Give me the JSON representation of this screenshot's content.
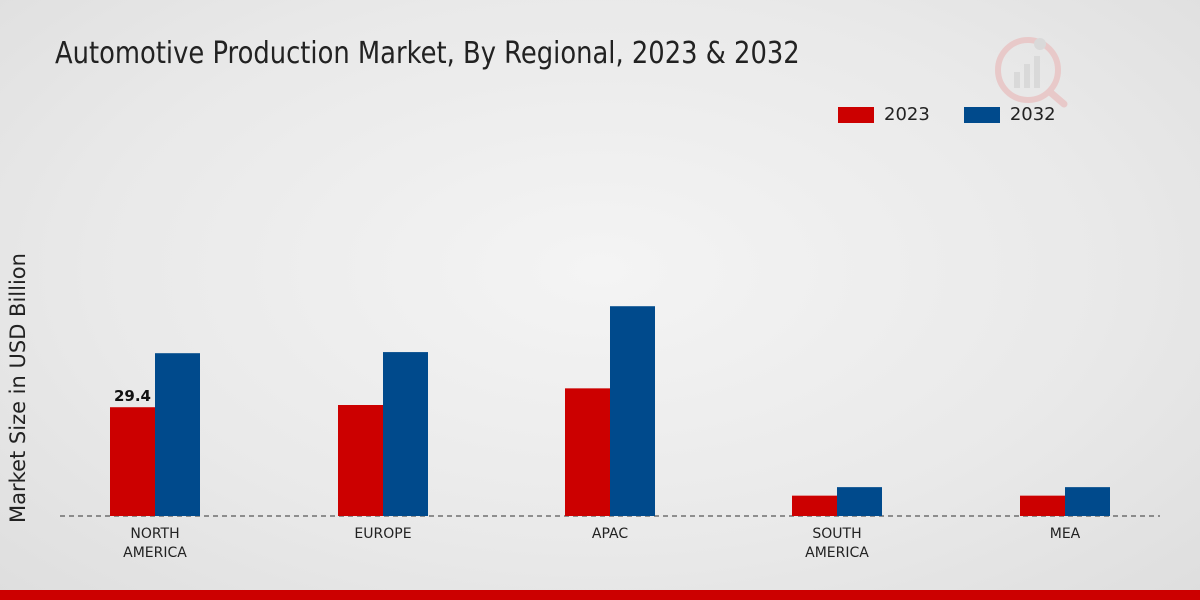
{
  "chart_data": {
    "type": "bar",
    "title": "Automotive Production Market, By Regional, 2023 & 2032",
    "xlabel": "",
    "ylabel": "Market Size in USD Billion",
    "categories": [
      "NORTH AMERICA",
      "EUROPE",
      "APAC",
      "SOUTH AMERICA",
      "MEA"
    ],
    "category_lines": [
      [
        "NORTH",
        "AMERICA"
      ],
      [
        "EUROPE"
      ],
      [
        "APAC"
      ],
      [
        "SOUTH",
        "AMERICA"
      ],
      [
        "MEA"
      ]
    ],
    "series": [
      {
        "name": "2023",
        "color": "#cc0000",
        "values": [
          29.4,
          30.0,
          34.5,
          5.5,
          5.5
        ]
      },
      {
        "name": "2032",
        "color": "#004a8c",
        "values": [
          44.0,
          44.3,
          56.7,
          7.8,
          7.8
        ]
      }
    ],
    "data_labels": [
      {
        "series": 0,
        "index": 0,
        "text": "29.4"
      }
    ],
    "ylim": [
      0,
      100
    ],
    "grid": false,
    "legend_position": "top-right"
  },
  "colors": {
    "accent": "#cc0000",
    "secondary": "#004a8c"
  }
}
